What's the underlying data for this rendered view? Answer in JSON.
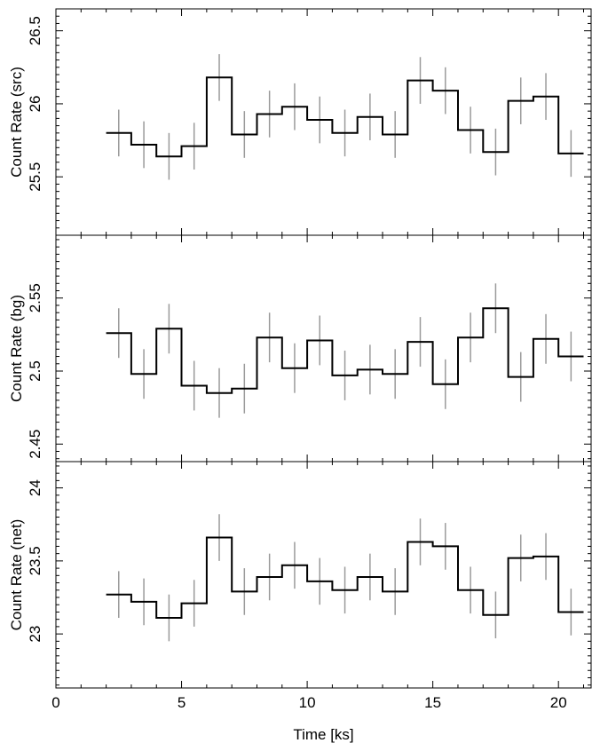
{
  "chart_data": {
    "type": "line",
    "xlabel": "Time [ks]",
    "xlim": [
      0,
      21.3
    ],
    "x_ticks": [
      "0",
      "5",
      "10",
      "15",
      "20"
    ],
    "bin_edges": [
      2,
      3,
      4,
      5,
      6,
      7,
      8,
      9,
      10,
      11,
      12,
      13,
      14,
      15,
      16,
      17,
      18,
      19,
      20,
      21
    ],
    "panels": [
      {
        "ylabel": "Count Rate (src)",
        "ylim": [
          25.1,
          26.65
        ],
        "y_ticks": [
          "25.5",
          "26",
          "26.5"
        ],
        "y_tick_values": [
          25.5,
          26.0,
          26.5
        ],
        "values": [
          25.8,
          25.72,
          25.64,
          25.71,
          26.18,
          25.79,
          25.93,
          25.98,
          25.89,
          25.8,
          25.91,
          25.79,
          26.16,
          26.09,
          25.82,
          25.67,
          26.02,
          26.05,
          25.66
        ],
        "errors": [
          0.16,
          0.16,
          0.16,
          0.16,
          0.16,
          0.16,
          0.16,
          0.16,
          0.16,
          0.16,
          0.16,
          0.16,
          0.16,
          0.16,
          0.16,
          0.16,
          0.16,
          0.16,
          0.16
        ]
      },
      {
        "ylabel": "Count Rate (bg)",
        "ylim": [
          2.438,
          2.593
        ],
        "y_ticks": [
          "2.45",
          "2.5",
          "2.55"
        ],
        "y_tick_values": [
          2.45,
          2.5,
          2.55
        ],
        "values": [
          2.526,
          2.498,
          2.529,
          2.49,
          2.485,
          2.488,
          2.523,
          2.502,
          2.521,
          2.497,
          2.501,
          2.498,
          2.52,
          2.491,
          2.523,
          2.543,
          2.496,
          2.522,
          2.51
        ],
        "errors": [
          0.017,
          0.017,
          0.017,
          0.017,
          0.017,
          0.017,
          0.017,
          0.017,
          0.017,
          0.017,
          0.017,
          0.017,
          0.017,
          0.017,
          0.017,
          0.017,
          0.017,
          0.017,
          0.017
        ]
      },
      {
        "ylabel": "Count Rate (net)",
        "ylim": [
          22.63,
          24.18
        ],
        "y_ticks": [
          "23",
          "23.5",
          "24"
        ],
        "y_tick_values": [
          23.0,
          23.5,
          24.0
        ],
        "values": [
          23.27,
          23.22,
          23.11,
          23.21,
          23.66,
          23.29,
          23.39,
          23.47,
          23.36,
          23.3,
          23.39,
          23.29,
          23.63,
          23.6,
          23.3,
          23.13,
          23.52,
          23.53,
          23.15
        ],
        "errors": [
          0.16,
          0.16,
          0.16,
          0.16,
          0.16,
          0.16,
          0.16,
          0.16,
          0.16,
          0.16,
          0.16,
          0.16,
          0.16,
          0.16,
          0.16,
          0.16,
          0.16,
          0.16,
          0.16
        ]
      }
    ]
  }
}
